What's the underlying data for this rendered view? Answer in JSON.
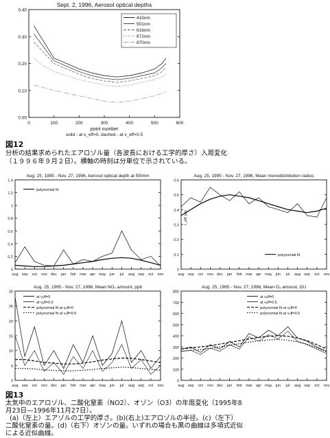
{
  "figure12": {
    "label": "図12",
    "caption_lines": [
      "分析の結果求められたエアロゾル量（各波長における工学的厚さ）入周変化",
      "（１９９６年９月２日）。横軸の時刻は分単位で示されている。"
    ]
  },
  "figure13": {
    "label": "図13",
    "caption_lines": [
      "太気中のエアロゾル、二酸化窒素（NO2）、オゾン（O3）の年周変化（1995年8",
      "月23日—1996年11月27日）。",
      "(a)（左上）エアゾルの工学的厚さ。(b)(右上)エアロゾルの半径。(c)（左下）",
      "二酸化窒素の量。(d)（右下）オゾンの量。いずれの場合も黒の曲線は多項式近似",
      "による近似曲線。"
    ]
  },
  "chart_data": [
    {
      "id": "aod-sept2",
      "type": "line",
      "title": "Sept. 2, 1996, Aerosol optical depths",
      "xlabel": "point number",
      "ylabel": "",
      "note": "solid - at v_eff=0. dashed - at v_eff=0.5",
      "xlim": [
        0,
        600
      ],
      "ylim": [
        0,
        0.4
      ],
      "xticks": [
        0,
        100,
        200,
        300,
        400,
        500,
        600
      ],
      "yticks": [
        0,
        0.1,
        0.2,
        0.3,
        0.4
      ],
      "ytick_labels": [
        "0.00",
        "0.10",
        "0.20",
        "0.30",
        "0.40"
      ],
      "legend_position": "top-right",
      "series": [
        {
          "name": "415nm",
          "values": [
            [
              20,
              0.34
            ],
            [
              60,
              0.28
            ],
            [
              100,
              0.22
            ],
            [
              150,
              0.2
            ],
            [
              200,
              0.18
            ],
            [
              250,
              0.165
            ],
            [
              300,
              0.155
            ],
            [
              350,
              0.15
            ],
            [
              400,
              0.155
            ],
            [
              450,
              0.165
            ],
            [
              500,
              0.18
            ],
            [
              530,
              0.2
            ],
            [
              545,
              0.22
            ]
          ]
        },
        {
          "name": "501nm",
          "values": [
            [
              20,
              0.31
            ],
            [
              60,
              0.26
            ],
            [
              100,
              0.21
            ],
            [
              150,
              0.19
            ],
            [
              200,
              0.17
            ],
            [
              250,
              0.155
            ],
            [
              300,
              0.145
            ],
            [
              350,
              0.14
            ],
            [
              400,
              0.145
            ],
            [
              450,
              0.155
            ],
            [
              500,
              0.165
            ],
            [
              530,
              0.185
            ],
            [
              545,
              0.2
            ]
          ]
        },
        {
          "name": "616nm",
          "values": [
            [
              20,
              0.28
            ],
            [
              60,
              0.24
            ],
            [
              100,
              0.2
            ],
            [
              150,
              0.18
            ],
            [
              200,
              0.16
            ],
            [
              250,
              0.145
            ],
            [
              300,
              0.135
            ],
            [
              350,
              0.13
            ],
            [
              400,
              0.135
            ],
            [
              450,
              0.145
            ],
            [
              500,
              0.155
            ],
            [
              530,
              0.17
            ],
            [
              545,
              0.185
            ]
          ]
        },
        {
          "name": "672nm",
          "values": [
            [
              20,
              0.22
            ],
            [
              60,
              0.19
            ],
            [
              100,
              0.17
            ],
            [
              150,
              0.155
            ],
            [
              200,
              0.14
            ],
            [
              250,
              0.13
            ],
            [
              300,
              0.12
            ],
            [
              350,
              0.115
            ],
            [
              400,
              0.12
            ],
            [
              450,
              0.13
            ],
            [
              500,
              0.14
            ],
            [
              530,
              0.15
            ],
            [
              545,
              0.16
            ]
          ]
        },
        {
          "name": "870nm",
          "values": [
            [
              20,
              0.12
            ],
            [
              60,
              0.11
            ],
            [
              100,
              0.1
            ],
            [
              150,
              0.09
            ],
            [
              200,
              0.08
            ],
            [
              250,
              0.07
            ],
            [
              300,
              0.06
            ],
            [
              350,
              0.055
            ],
            [
              400,
              0.06
            ],
            [
              450,
              0.07
            ],
            [
              500,
              0.08
            ],
            [
              530,
              0.09
            ],
            [
              545,
              0.095
            ]
          ]
        }
      ]
    },
    {
      "id": "aod-550",
      "type": "line",
      "title": "Aug. 25, 1995 - Nov. 27, 1996, Aerosol optical depth at 550nm",
      "categories": [
        "aug",
        "sep",
        "oct",
        "nov",
        "dec",
        "jan",
        "feb",
        "mar",
        "apr",
        "may",
        "jun",
        "jul",
        "aug",
        "sep",
        "oct",
        "nov"
      ],
      "ylim": [
        0,
        1.4
      ],
      "yticks": [
        0,
        0.2,
        0.4,
        0.6,
        0.8,
        1.0,
        1.2,
        1.4
      ],
      "ytick_labels": [
        "0",
        "0.2",
        "0.4",
        "0.6",
        "0.8",
        "1",
        "1.2",
        "1.4"
      ],
      "legend_position": "top-left",
      "series": [
        {
          "name": "",
          "values": [
            0.1,
            0.35,
            0.12,
            0.06,
            0.05,
            0.3,
            0.08,
            0.15,
            0.12,
            0.2,
            0.25,
            0.6,
            0.3,
            0.15,
            0.2,
            0.05
          ]
        },
        {
          "name": "polynomial fit",
          "values": [
            0.06,
            0.05,
            0.04,
            0.04,
            0.05,
            0.06,
            0.08,
            0.1,
            0.12,
            0.15,
            0.17,
            0.18,
            0.17,
            0.14,
            0.1,
            0.06
          ]
        }
      ]
    },
    {
      "id": "radius",
      "type": "line",
      "title": "Aug. 25, 1995 - Nov. 27, 1996, Mean monodistribution radius",
      "ylabel": "r_eff, μm",
      "categories": [
        "aug",
        "sep",
        "oct",
        "nov",
        "dec",
        "jan",
        "feb",
        "mar",
        "apr",
        "may",
        "jun",
        "jul",
        "aug",
        "sep",
        "oct",
        "nov"
      ],
      "ylim": [
        0,
        0.6
      ],
      "yticks": [
        0,
        0.1,
        0.2,
        0.3,
        0.4,
        0.5,
        0.6
      ],
      "ytick_labels": [
        "0",
        "0.1",
        "0.2",
        "0.3",
        "0.4",
        "0.5",
        "0.6"
      ],
      "legend_position": "bottom-right",
      "series": [
        {
          "name": "",
          "values": [
            0.42,
            0.48,
            0.45,
            0.55,
            0.5,
            0.46,
            0.52,
            0.44,
            0.48,
            0.42,
            0.4,
            0.38,
            0.44,
            0.36,
            0.35,
            0.48
          ]
        },
        {
          "name": "polynomial fit",
          "values": [
            0.36,
            0.4,
            0.44,
            0.47,
            0.49,
            0.5,
            0.49,
            0.48,
            0.46,
            0.44,
            0.42,
            0.4,
            0.39,
            0.38,
            0.39,
            0.41
          ]
        }
      ]
    },
    {
      "id": "no2",
      "type": "line",
      "title": "Aug. 25, 1995 - Nov. 27, 1996, Mean NO₂ amount, ppb",
      "categories": [
        "aug",
        "sep",
        "oct",
        "nov",
        "dec",
        "jan",
        "feb",
        "mar",
        "apr",
        "may",
        "jun",
        "jul",
        "aug",
        "sep",
        "oct",
        "nov"
      ],
      "ylim": [
        0,
        30
      ],
      "yticks": [
        0,
        5,
        10,
        15,
        20,
        25,
        30
      ],
      "ytick_labels": [
        "0",
        "5",
        "10",
        "15",
        "20",
        "25",
        "30"
      ],
      "legend_position": "top-left",
      "series": [
        {
          "name": "at v_eff=0",
          "values": [
            28,
            8,
            18,
            5,
            10,
            4,
            12,
            6,
            15,
            5,
            9,
            20,
            6,
            10,
            4,
            8
          ]
        },
        {
          "name": "at v_eff=0.5",
          "values": [
            15,
            5,
            10,
            3,
            6,
            2,
            8,
            4,
            10,
            3,
            6,
            12,
            4,
            7,
            2,
            5
          ]
        },
        {
          "name": "polynomial fit at v_eff=0",
          "values": [
            7,
            7,
            6.5,
            6,
            5.8,
            5.5,
            5.5,
            5.8,
            6.2,
            6.8,
            7.2,
            7.5,
            7.4,
            7,
            6.5,
            6
          ]
        },
        {
          "name": "polynomial fit at v_eff=0.5",
          "values": [
            4,
            4,
            3.8,
            3.5,
            3.3,
            3.2,
            3.2,
            3.4,
            3.6,
            4,
            4.2,
            4.4,
            4.3,
            4,
            3.7,
            3.4
          ]
        }
      ]
    },
    {
      "id": "o3",
      "type": "line",
      "title": "Aug. 25, 1995 - Nov. 27, 1996, Mean O₃ amount, DU",
      "categories": [
        "aug",
        "sep",
        "oct",
        "nov",
        "dec",
        "jan",
        "feb",
        "mar",
        "apr",
        "may",
        "jun",
        "jul",
        "aug",
        "sep",
        "oct",
        "nov"
      ],
      "ylim": [
        0,
        800
      ],
      "yticks": [
        0,
        100,
        200,
        300,
        400,
        500,
        600,
        700,
        800
      ],
      "ytick_labels": [
        "0",
        "100",
        "200",
        "300",
        "400",
        "500",
        "600",
        "700",
        "800"
      ],
      "legend_position": "top-right",
      "series": [
        {
          "name": "at v_eff=0",
          "values": [
            280,
            300,
            250,
            320,
            280,
            350,
            300,
            420,
            380,
            450,
            400,
            480,
            380,
            350,
            300,
            260
          ]
        },
        {
          "name": "at v_eff=0.5",
          "values": [
            260,
            270,
            230,
            290,
            260,
            320,
            280,
            390,
            350,
            410,
            370,
            440,
            350,
            320,
            280,
            240
          ]
        },
        {
          "name": "polynomial fit at v_eff=0",
          "values": [
            280,
            290,
            300,
            310,
            325,
            340,
            355,
            370,
            385,
            395,
            400,
            395,
            380,
            355,
            320,
            280
          ]
        },
        {
          "name": "polynomial fit at v_eff=0.5",
          "values": [
            260,
            268,
            276,
            286,
            300,
            314,
            328,
            342,
            354,
            362,
            366,
            360,
            346,
            324,
            292,
            256
          ]
        }
      ]
    }
  ]
}
